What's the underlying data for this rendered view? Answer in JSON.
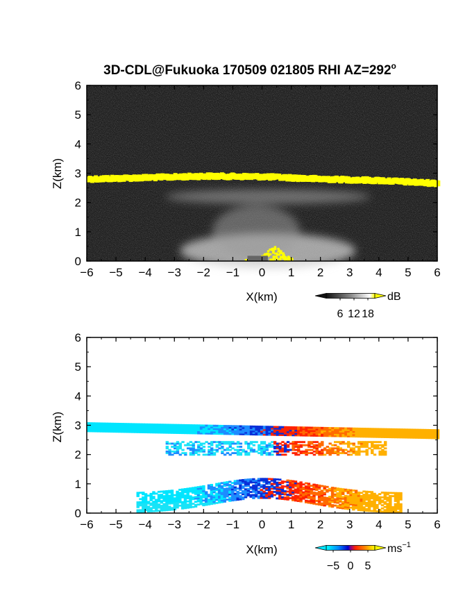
{
  "title": "3D-CDL@Fukuoka 170509 021805 RHI AZ=292",
  "title_degree": "o",
  "chart_data": [
    {
      "type": "heatmap",
      "name": "reflectivity",
      "xlabel": "X(km)",
      "ylabel": "Z(km)",
      "xlim": [
        -6,
        6
      ],
      "ylim": [
        0,
        6
      ],
      "x_ticks": [
        "-6",
        "-5",
        "-4",
        "-3",
        "-2",
        "-1",
        "0",
        "1",
        "2",
        "3",
        "4",
        "5",
        "6"
      ],
      "y_ticks": [
        "0",
        "1",
        "2",
        "3",
        "4",
        "5",
        "6"
      ],
      "background": "#1a1a1a",
      "colorbar": {
        "unit": "dB",
        "ticks": [
          "6",
          "12",
          "18"
        ],
        "range": [
          0,
          21
        ]
      },
      "features": [
        {
          "label": "high-reflectivity layer",
          "color": "#ffff00",
          "x": [
            -6,
            -4,
            -2,
            0,
            2,
            4,
            6
          ],
          "z": [
            2.8,
            2.85,
            2.9,
            2.88,
            2.8,
            2.75,
            2.65
          ]
        },
        {
          "label": "diffuse layer",
          "color": "#888888",
          "x": [
            -3.5,
            -2,
            0,
            2,
            4
          ],
          "z": [
            2.15,
            2.25,
            2.3,
            2.25,
            2.2
          ]
        },
        {
          "label": "surface echo",
          "color": "#ffff00",
          "x": [
            -0.5,
            0,
            0.5,
            1.0
          ],
          "z": [
            0.1,
            0.3,
            0.45,
            0.2
          ]
        }
      ]
    },
    {
      "type": "heatmap",
      "name": "doppler velocity",
      "xlabel": "X(km)",
      "ylabel": "Z(km)",
      "xlim": [
        -6,
        6
      ],
      "ylim": [
        0,
        6
      ],
      "x_ticks": [
        "-6",
        "-5",
        "-4",
        "-3",
        "-2",
        "-1",
        "0",
        "1",
        "2",
        "3",
        "4",
        "5",
        "6"
      ],
      "y_ticks": [
        "0",
        "1",
        "2",
        "3",
        "4",
        "5",
        "6"
      ],
      "colorbar": {
        "unit": "ms",
        "unit_exponent": "-1",
        "ticks": [
          "-5",
          "0",
          "5"
        ],
        "range": [
          -7,
          7
        ]
      },
      "features": [
        {
          "label": "upper layer",
          "z_range": [
            2.55,
            3.0
          ],
          "x_range": [
            -6,
            6
          ],
          "velocity": "negative for x<0.5, positive for x>0.5"
        },
        {
          "label": "mid layer",
          "z_range": [
            1.9,
            2.45
          ],
          "x_range": [
            -3.3,
            4.2
          ],
          "velocity": "negative for x<0.5, positive for x>0.5"
        },
        {
          "label": "low layer",
          "z_range": [
            0,
            1.3
          ],
          "x_range": [
            -4.3,
            4.7
          ],
          "velocity": "negative for x<0.5, positive for x>0.5"
        }
      ]
    }
  ]
}
